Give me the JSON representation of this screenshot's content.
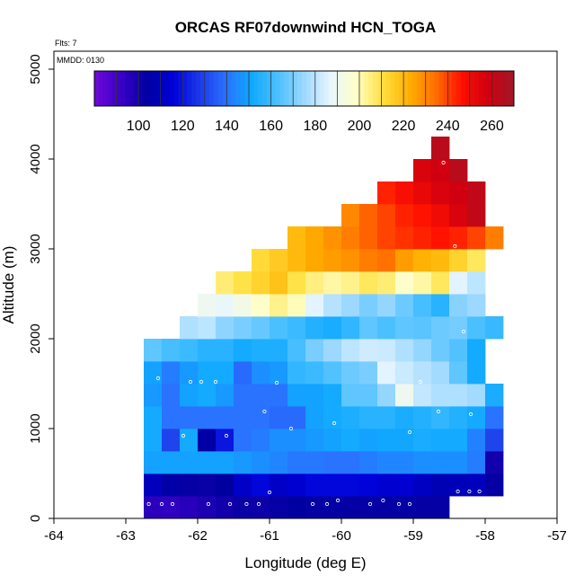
{
  "chart_data": {
    "type": "heatmap",
    "title": "ORCAS RF07downwind HCN_TOGA",
    "annotations": [
      "Flts: 7",
      "MMDD: 0130"
    ],
    "xlabel": "Longitude (deg E)",
    "ylabel": "Altitude (m)",
    "xlim": [
      -64,
      -57
    ],
    "ylim": [
      0,
      5200
    ],
    "x_ticks": [
      -64,
      -63,
      -62,
      -61,
      -60,
      -59,
      -58,
      -57
    ],
    "y_ticks": [
      0,
      1000,
      2000,
      3000,
      4000,
      5000
    ],
    "colorbar": {
      "min": 80,
      "max": 270,
      "ticks": [
        100,
        120,
        140,
        160,
        180,
        200,
        220,
        240,
        260
      ],
      "colors": [
        "#6d0ad8",
        "#3a00c8",
        "#0000a0",
        "#0000d8",
        "#1c38e8",
        "#2a70ff",
        "#10a8ff",
        "#4cc0ff",
        "#9cd8ff",
        "#e8f6ff",
        "#ffffc8",
        "#ffe040",
        "#ffb000",
        "#ff7000",
        "#ff1000",
        "#d00010",
        "#a01828"
      ]
    },
    "cell_size": {
      "lon": 0.25,
      "alt": 250
    },
    "rows": [
      {
        "alt": 0,
        "lon_start": -62.75,
        "values": [
          95,
          94,
          96,
          98,
          100,
          102,
          101,
          103,
          104,
          103,
          103,
          103,
          103,
          103,
          103,
          103,
          103
        ]
      },
      {
        "alt": 250,
        "lon_start": -62.75,
        "values": [
          110,
          105,
          103,
          102,
          104,
          112,
          117,
          112,
          114,
          117,
          117,
          117,
          116,
          114,
          114,
          111,
          108,
          109,
          110,
          103
        ]
      },
      {
        "alt": 500,
        "lon_start": -62.75,
        "values": [
          150,
          150,
          150,
          150,
          150,
          148,
          146,
          144,
          141,
          141,
          140,
          140,
          142,
          144,
          144,
          146,
          146,
          146,
          142,
          100
        ]
      },
      {
        "alt": 750,
        "lon_start": -62.75,
        "values": [
          152,
          130,
          152,
          105,
          120,
          140,
          142,
          146,
          146,
          148,
          150,
          152,
          150,
          151,
          151,
          153,
          152,
          152,
          143,
          130
        ]
      },
      {
        "alt": 1000,
        "lon_start": -62.75,
        "values": [
          152,
          140,
          140,
          140,
          140,
          140,
          140,
          138,
          138,
          150,
          152,
          154,
          156,
          156,
          153,
          155,
          158,
          155,
          152,
          140
        ]
      },
      {
        "alt": 1250,
        "lon_start": -62.75,
        "values": [
          148,
          140,
          150,
          152,
          148,
          140,
          140,
          140,
          150,
          150,
          152,
          166,
          166,
          174,
          190,
          181,
          178,
          178,
          176,
          153
        ]
      },
      {
        "alt": 1500,
        "lon_start": -62.75,
        "values": [
          150,
          142,
          148,
          152,
          152,
          138,
          146,
          148,
          158,
          160,
          164,
          168,
          170,
          186,
          182,
          179,
          176,
          166,
          152
        ]
      },
      {
        "alt": 1750,
        "lon_start": -62.75,
        "values": [
          166,
          162,
          160,
          156,
          156,
          152,
          154,
          154,
          162,
          170,
          175,
          180,
          183,
          182,
          178,
          174,
          168,
          164,
          152
        ]
      },
      {
        "alt": 2000,
        "lon_start": -62.25,
        "values": [
          178,
          180,
          173,
          170,
          167,
          163,
          160,
          155,
          153,
          158,
          166,
          163,
          166,
          165,
          168,
          169,
          163,
          159
        ]
      },
      {
        "alt": 2250,
        "lon_start": -62.0,
        "values": [
          190,
          188,
          192,
          198,
          204,
          200,
          186,
          179,
          175,
          170,
          174,
          168,
          162,
          156,
          172,
          175
        ]
      },
      {
        "alt": 2500,
        "lon_start": -61.75,
        "values": [
          206,
          210,
          214,
          218,
          210,
          205,
          202,
          204,
          208,
          206,
          198,
          202,
          208,
          186,
          180
        ]
      },
      {
        "alt": 2750,
        "lon_start": -61.25,
        "values": [
          212,
          216,
          220,
          224,
          226,
          228,
          232,
          234,
          226,
          222,
          220,
          214,
          208
        ]
      },
      {
        "alt": 3000,
        "lon_start": -60.75,
        "values": [
          220,
          224,
          228,
          232,
          236,
          240,
          242,
          244,
          246,
          244,
          240,
          232
        ]
      },
      {
        "alt": 3250,
        "lon_start": -60.0,
        "values": [
          230,
          236,
          240,
          244,
          246,
          250,
          256,
          262
        ]
      },
      {
        "alt": 3500,
        "lon_start": -59.5,
        "values": [
          244,
          248,
          252,
          256,
          258,
          262
        ]
      },
      {
        "alt": 3750,
        "lon_start": -59.0,
        "values": [
          256,
          258,
          264
        ]
      },
      {
        "alt": 4000,
        "lon_start": -58.75,
        "values": [
          264
        ]
      }
    ],
    "points": [
      [
        -62.68,
        160
      ],
      [
        -62.5,
        160
      ],
      [
        -62.35,
        160
      ],
      [
        -61.85,
        160
      ],
      [
        -61.55,
        160
      ],
      [
        -61.32,
        160
      ],
      [
        -61.15,
        160
      ],
      [
        -60.4,
        160
      ],
      [
        -60.2,
        160
      ],
      [
        -60.05,
        200
      ],
      [
        -59.6,
        160
      ],
      [
        -59.42,
        200
      ],
      [
        -59.2,
        160
      ],
      [
        -59.05,
        160
      ],
      [
        -58.38,
        300
      ],
      [
        -58.22,
        300
      ],
      [
        -58.08,
        300
      ],
      [
        -62.8,
        630
      ],
      [
        -62.2,
        920
      ],
      [
        -61.6,
        920
      ],
      [
        -61.0,
        290
      ],
      [
        -60.7,
        1000
      ],
      [
        -60.1,
        1060
      ],
      [
        -59.05,
        960
      ],
      [
        -58.65,
        1190
      ],
      [
        -58.2,
        1160
      ],
      [
        -62.55,
        1560
      ],
      [
        -62.1,
        1520
      ],
      [
        -61.95,
        1520
      ],
      [
        -61.75,
        1520
      ],
      [
        -61.07,
        1190
      ],
      [
        -60.9,
        1510
      ],
      [
        -58.9,
        1520
      ],
      [
        -58.3,
        2080
      ],
      [
        -58.42,
        3030
      ],
      [
        -58.58,
        3960
      ]
    ]
  }
}
